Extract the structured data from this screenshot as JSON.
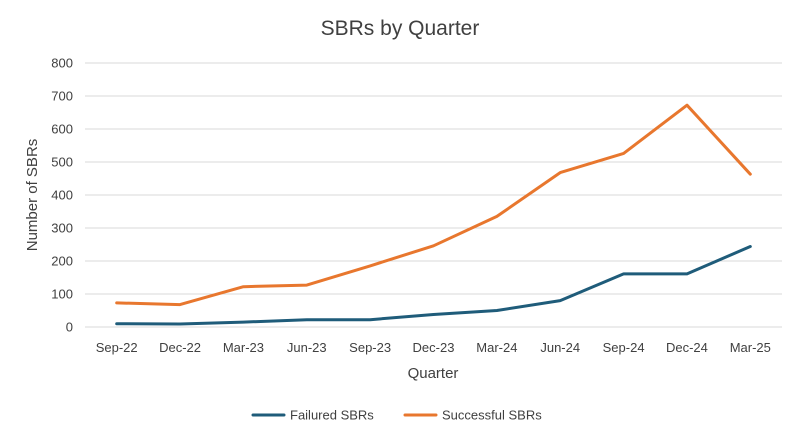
{
  "chart_data": {
    "type": "line",
    "title": "SBRs by Quarter",
    "xlabel": "Quarter",
    "ylabel": "Number of SBRs",
    "ylim": [
      0,
      800
    ],
    "yticks": [
      "0",
      "100",
      "200",
      "300",
      "400",
      "500",
      "600",
      "700",
      "800"
    ],
    "categories": [
      "Sep-22",
      "Dec-22",
      "Mar-23",
      "Jun-23",
      "Sep-23",
      "Dec-23",
      "Mar-24",
      "Jun-24",
      "Sep-24",
      "Dec-24",
      "Mar-25"
    ],
    "grid": true,
    "legend_position": "bottom",
    "series": [
      {
        "name": "Failured SBRs",
        "color": "#1f5c7a",
        "values": [
          10,
          9,
          15,
          22,
          22,
          38,
          50,
          80,
          161,
          161,
          244
        ]
      },
      {
        "name": "Successful SBRs",
        "color": "#e8772e",
        "values": [
          73,
          68,
          122,
          127,
          185,
          246,
          335,
          468,
          526,
          672,
          463
        ]
      }
    ]
  }
}
